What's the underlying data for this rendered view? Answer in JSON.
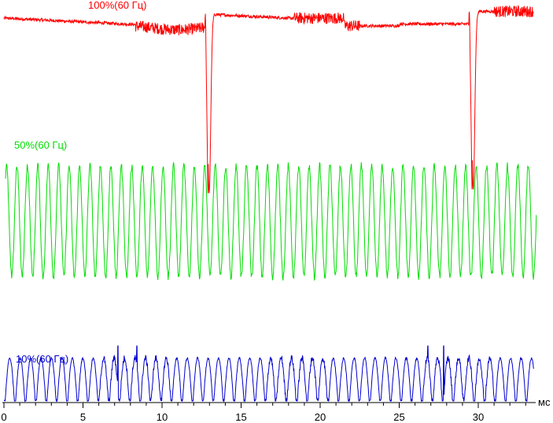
{
  "chart_data": {
    "type": "line",
    "title": "",
    "xlabel": "мс",
    "ylabel": "",
    "xlim": [
      0,
      34.5
    ],
    "x_ticks": [
      0,
      5,
      10,
      15,
      20,
      25,
      30
    ],
    "grid": false,
    "legend": "inline labels above each trace",
    "series": [
      {
        "name": "100%(60 Гц)",
        "color": "#ff0000",
        "description_of_shape": "near-constant high level with two sharp dips",
        "baseline_level": 0.96,
        "dips": [
          {
            "x": 12.9,
            "min": 0.05
          },
          {
            "x": 29.6,
            "min": 0.07
          }
        ]
      },
      {
        "name": "50%(60 Гц)",
        "color": "#00dd00",
        "waveform": "periodic oscillation",
        "period_ms": 0.66,
        "high": 0.93,
        "low": 0.02
      },
      {
        "name": "10%(60 Гц)",
        "color": "#0000cc",
        "waveform": "periodic arches",
        "period_ms": 0.66,
        "high": 0.78,
        "low": 0.0
      }
    ]
  }
}
